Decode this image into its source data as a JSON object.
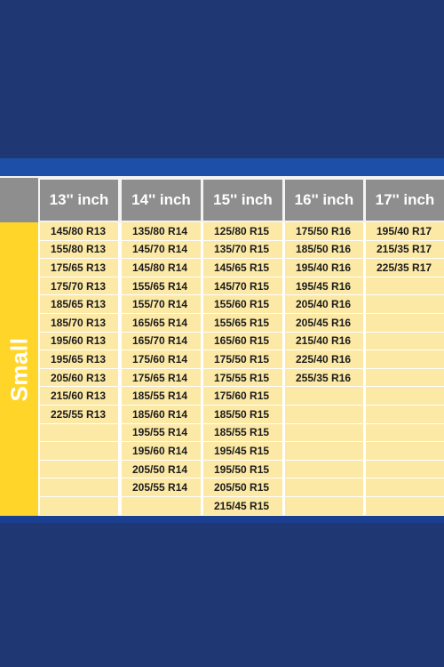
{
  "table": {
    "category_label": "Small",
    "columns": [
      {
        "header": "13'' inch",
        "sizes": [
          "145/80 R13",
          "155/80 R13",
          "175/65 R13",
          "175/70 R13",
          "185/65 R13",
          "185/70 R13",
          "195/60 R13",
          "195/65 R13",
          "205/60 R13",
          "215/60 R13",
          "225/55 R13",
          "",
          "",
          "",
          "",
          ""
        ]
      },
      {
        "header": "14'' inch",
        "sizes": [
          "135/80 R14",
          "145/70 R14",
          "145/80 R14",
          "155/65 R14",
          "155/70 R14",
          "165/65 R14",
          "165/70 R14",
          "175/60 R14",
          "175/65 R14",
          "185/55 R14",
          "185/60 R14",
          "195/55 R14",
          "195/60 R14",
          "205/50 R14",
          "205/55 R14",
          ""
        ]
      },
      {
        "header": "15'' inch",
        "sizes": [
          "125/80 R15",
          "135/70 R15",
          "145/65 R15",
          "145/70 R15",
          "155/60 R15",
          "155/65 R15",
          "165/60 R15",
          "175/50 R15",
          "175/55 R15",
          "175/60 R15",
          "185/50 R15",
          "185/55 R15",
          "195/45 R15",
          "195/50 R15",
          "205/50 R15",
          "215/45 R15"
        ]
      },
      {
        "header": "16'' inch",
        "sizes": [
          "175/50 R16",
          "185/50 R16",
          "195/40 R16",
          "195/45 R16",
          "205/40 R16",
          "205/45 R16",
          "215/40 R16",
          "225/40 R16",
          "255/35 R16",
          "",
          "",
          "",
          "",
          "",
          "",
          ""
        ]
      },
      {
        "header": "17'' inch",
        "sizes": [
          "195/40 R17",
          "215/35 R17",
          "225/35 R17",
          "",
          "",
          "",
          "",
          "",
          "",
          "",
          "",
          "",
          "",
          "",
          "",
          ""
        ]
      }
    ]
  },
  "colors": {
    "background": "#1f3874",
    "header_bg": "#8e8e8e",
    "cell_bg": "#fce9a6",
    "label_bg": "#ffd52a"
  }
}
